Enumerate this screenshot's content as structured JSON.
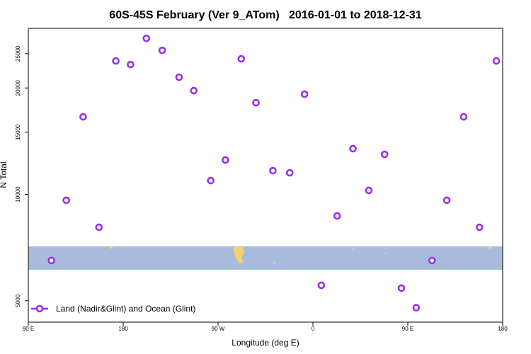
{
  "chart_data": {
    "type": "scatter",
    "title": "60S-45S February (Ver 9_ATom)   2016-01-01 to 2018-12-31",
    "x_label": "Longitude (deg E)",
    "y_label": "N Total",
    "log_y": true,
    "xlim": [
      90,
      540
    ],
    "ylim": [
      4350,
      29500
    ],
    "xticks": [
      {
        "value": 90,
        "label": "90 E"
      },
      180,
      {
        "value": 270,
        "label": "90 W"
      },
      {
        "value": 360,
        "label": "0"
      },
      {
        "value": 450,
        "label": "90 E"
      },
      {
        "value": 540,
        "label": "180"
      }
    ],
    "yticks": [
      5000,
      10000,
      15000,
      20000,
      25000
    ],
    "legend": "bottom left",
    "series": [
      {
        "name": "Land (Nadir&Glint) and Ocean (Glint)",
        "color": "#9b30f0",
        "x": [
          112,
          126,
          142,
          157,
          173,
          187,
          202,
          217,
          233,
          247,
          263,
          277,
          292,
          306,
          322,
          338,
          352,
          368,
          383,
          398,
          413,
          428,
          444,
          458,
          473,
          487,
          503,
          518,
          534
        ],
        "values": [
          6500,
          9620,
          16570,
          8070,
          23850,
          23300,
          27640,
          25550,
          21450,
          19650,
          10940,
          12510,
          24180,
          18170,
          11670,
          11510,
          19210,
          5530,
          8690,
          13470,
          10260,
          12980,
          5430,
          4780,
          6500,
          9620,
          16570,
          8070,
          23850
        ]
      }
    ]
  }
}
